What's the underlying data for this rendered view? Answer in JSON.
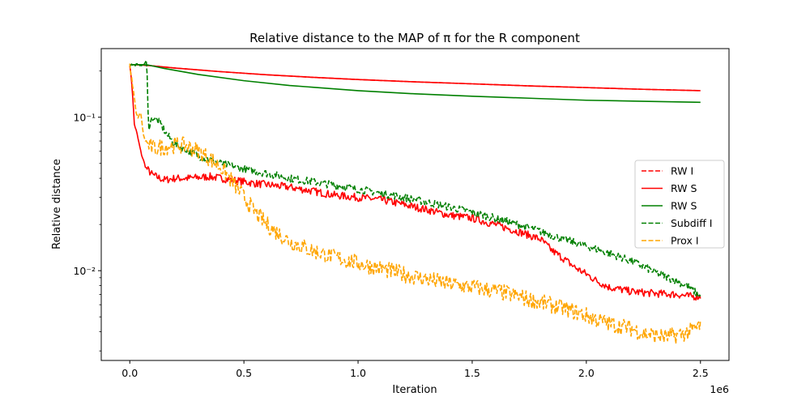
{
  "chart_data": {
    "type": "line",
    "title": "Relative distance to the MAP of π for the R component",
    "xlabel": "Iteration",
    "ylabel": "Relative distance",
    "x_offset_label": "1e6",
    "yscale": "log",
    "xlim": [
      -0.125,
      2.625
    ],
    "ylim": [
      0.0026,
      0.28
    ],
    "x_ticks": [
      0.0,
      0.5,
      1.0,
      1.5,
      2.0,
      2.5
    ],
    "x_tick_labels": [
      "0.0",
      "0.5",
      "1.0",
      "1.5",
      "2.0",
      "2.5"
    ],
    "y_ticks": [
      0.1,
      0.01
    ],
    "y_tick_labels": [
      "10⁻¹",
      "10⁻²"
    ],
    "legend_position": "center-right",
    "grid": false,
    "series": [
      {
        "name": "RW I",
        "color": "#ff0000",
        "dash": "dashed",
        "noise": 0,
        "x": [
          0.0,
          0.02,
          0.05,
          0.1,
          0.2,
          0.4,
          0.6,
          0.8,
          1.0,
          1.25,
          1.5,
          1.75,
          2.0,
          2.25,
          2.5
        ],
        "y": [
          0.22,
          0.22,
          0.219,
          0.216,
          0.209,
          0.198,
          0.189,
          0.182,
          0.176,
          0.17,
          0.165,
          0.16,
          0.156,
          0.152,
          0.149
        ]
      },
      {
        "name": "RW S",
        "color": "#ff0000",
        "dash": "solid",
        "noise": 0,
        "x": [
          0.0,
          0.02,
          0.05,
          0.1,
          0.2,
          0.4,
          0.6,
          0.8,
          1.0,
          1.25,
          1.5,
          1.75,
          2.0,
          2.25,
          2.5
        ],
        "y": [
          0.22,
          0.22,
          0.219,
          0.216,
          0.209,
          0.198,
          0.189,
          0.182,
          0.176,
          0.17,
          0.165,
          0.16,
          0.156,
          0.152,
          0.149
        ]
      },
      {
        "name": "RW S",
        "color": "#008000",
        "dash": "solid",
        "noise": 0,
        "x": [
          0.0,
          0.05,
          0.08,
          0.15,
          0.3,
          0.5,
          0.7,
          1.0,
          1.25,
          1.5,
          1.75,
          2.0,
          2.25,
          2.5
        ],
        "y": [
          0.22,
          0.22,
          0.219,
          0.208,
          0.19,
          0.173,
          0.161,
          0.149,
          0.142,
          0.137,
          0.133,
          0.129,
          0.127,
          0.125
        ]
      },
      {
        "name": "Subdiff I",
        "color": "#008000",
        "dash": "dashed",
        "noise": 0.025,
        "x": [
          0.0,
          0.06,
          0.075,
          0.078,
          0.083,
          0.1,
          0.13,
          0.16,
          0.2,
          0.3,
          0.4,
          0.5,
          0.6,
          0.7,
          0.8,
          0.9,
          1.0,
          1.1,
          1.2,
          1.3,
          1.4,
          1.5,
          1.6,
          1.7,
          1.8,
          1.9,
          2.0,
          2.1,
          2.2,
          2.3,
          2.4,
          2.45,
          2.5
        ],
        "y": [
          0.22,
          0.22,
          0.235,
          0.12,
          0.087,
          0.1,
          0.093,
          0.078,
          0.066,
          0.056,
          0.05,
          0.046,
          0.043,
          0.04,
          0.038,
          0.036,
          0.034,
          0.032,
          0.03,
          0.028,
          0.026,
          0.024,
          0.022,
          0.02,
          0.018,
          0.016,
          0.0145,
          0.013,
          0.0115,
          0.0098,
          0.0085,
          0.0078,
          0.0068
        ]
      },
      {
        "name": "Prox I",
        "color": "#ffa500",
        "dash": "dashed",
        "noise": 0.055,
        "x": [
          0.0,
          0.015,
          0.03,
          0.05,
          0.06,
          0.08,
          0.1,
          0.15,
          0.2,
          0.25,
          0.3,
          0.35,
          0.4,
          0.45,
          0.5,
          0.55,
          0.6,
          0.65,
          0.7,
          0.8,
          0.9,
          1.0,
          1.1,
          1.2,
          1.3,
          1.4,
          1.5,
          1.6,
          1.7,
          1.8,
          1.9,
          2.0,
          2.1,
          2.2,
          2.25,
          2.3,
          2.35,
          2.4,
          2.45,
          2.5
        ],
        "y": [
          0.22,
          0.15,
          0.1,
          0.105,
          0.075,
          0.066,
          0.063,
          0.064,
          0.066,
          0.065,
          0.06,
          0.054,
          0.047,
          0.038,
          0.03,
          0.024,
          0.02,
          0.0175,
          0.0155,
          0.0135,
          0.0122,
          0.0112,
          0.0103,
          0.0095,
          0.0088,
          0.0082,
          0.0078,
          0.0074,
          0.0068,
          0.0062,
          0.0057,
          0.0051,
          0.0045,
          0.0042,
          0.0039,
          0.0038,
          0.0037,
          0.0038,
          0.004,
          0.0044
        ]
      },
      {
        "name": "",
        "color": "#ff0000",
        "dash": "solid",
        "noise": 0.025,
        "x": [
          0.0,
          0.01,
          0.02,
          0.03,
          0.05,
          0.07,
          0.1,
          0.15,
          0.2,
          0.25,
          0.35,
          0.45,
          0.55,
          0.7,
          0.8,
          0.9,
          1.0,
          1.1,
          1.2,
          1.3,
          1.4,
          1.5,
          1.6,
          1.7,
          1.75,
          1.8,
          1.85,
          1.9,
          1.95,
          2.0,
          2.05,
          2.1,
          2.2,
          2.3,
          2.4,
          2.45,
          2.5
        ],
        "y": [
          0.22,
          0.16,
          0.09,
          0.08,
          0.058,
          0.047,
          0.042,
          0.039,
          0.04,
          0.04,
          0.041,
          0.039,
          0.037,
          0.035,
          0.033,
          0.031,
          0.03,
          0.029,
          0.027,
          0.025,
          0.023,
          0.022,
          0.02,
          0.018,
          0.017,
          0.016,
          0.0135,
          0.012,
          0.0105,
          0.0095,
          0.0085,
          0.0078,
          0.0073,
          0.0071,
          0.007,
          0.0068,
          0.0068
        ]
      }
    ]
  }
}
